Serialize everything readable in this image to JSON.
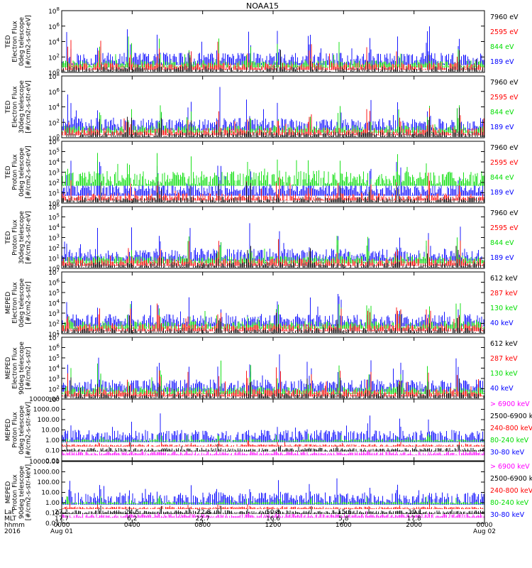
{
  "title": "NOAA15",
  "colors": {
    "black": "#000000",
    "blue": "#0000ff",
    "red": "#ff0000",
    "green": "#00dd00",
    "magenta": "#ff00ff"
  },
  "chart_data": [
    {
      "type": "line",
      "scale": "log",
      "ylabel": [
        "TED",
        "Electron Flux",
        "0deg telescope",
        "[#/cm2-s-str-eV]"
      ],
      "ytick_labels": [
        "10^0",
        "10^2",
        "10^4",
        "10^6",
        "10^8"
      ],
      "ytick_exponents": [
        0,
        2,
        4,
        6,
        8
      ],
      "ylim": [
        1,
        100000000
      ],
      "legend": [
        "7960 eV",
        "2595 eV",
        "844 eV",
        "189 eV"
      ],
      "legend_colors": [
        "#000000",
        "#ff0000",
        "#00dd00",
        "#0000ff"
      ]
    },
    {
      "type": "line",
      "scale": "log",
      "ylabel": [
        "TED",
        "Electron Flux",
        "30deg telescope",
        "[#/cm2-s-str-eV]"
      ],
      "ytick_labels": [
        "10^0",
        "10^2",
        "10^4",
        "10^6",
        "10^8"
      ],
      "ytick_exponents": [
        0,
        2,
        4,
        6,
        8
      ],
      "ylim": [
        1,
        100000000
      ],
      "legend": [
        "7960 eV",
        "2595 eV",
        "844 eV",
        "189 eV"
      ],
      "legend_colors": [
        "#000000",
        "#ff0000",
        "#00dd00",
        "#0000ff"
      ]
    },
    {
      "type": "line",
      "scale": "log",
      "ylabel": [
        "TED",
        "Proton Flux",
        "0deg telescope",
        "[#/cm2-s-str-eV]"
      ],
      "ytick_labels": [
        "10^0",
        "10^1",
        "10^2",
        "10^3",
        "10^4",
        "10^5",
        "10^6"
      ],
      "ytick_exponents": [
        0,
        1,
        2,
        3,
        4,
        5,
        6
      ],
      "ylim": [
        1,
        1000000
      ],
      "legend": [
        "7960 eV",
        "2595 eV",
        "844 eV",
        "189 eV"
      ],
      "legend_colors": [
        "#000000",
        "#ff0000",
        "#00dd00",
        "#0000ff"
      ]
    },
    {
      "type": "line",
      "scale": "log",
      "ylabel": [
        "TED",
        "Proton Flux",
        "30deg telescope",
        "[#/cm2-s-str-eV]"
      ],
      "ytick_labels": [
        "10^0",
        "10^1",
        "10^2",
        "10^3",
        "10^4",
        "10^5",
        "10^6"
      ],
      "ytick_exponents": [
        0,
        1,
        2,
        3,
        4,
        5,
        6
      ],
      "ylim": [
        1,
        1000000
      ],
      "legend": [
        "7960 eV",
        "2595 eV",
        "844 eV",
        "189 eV"
      ],
      "legend_colors": [
        "#000000",
        "#ff0000",
        "#00dd00",
        "#0000ff"
      ]
    },
    {
      "type": "line",
      "scale": "log",
      "ylabel": [
        "MEPED",
        "Electron Flux",
        "0deg telescope",
        "[#/cm2-s-str]"
      ],
      "ytick_labels": [
        "10^1",
        "10^2",
        "10^3",
        "10^4",
        "10^5",
        "10^6",
        "10^7"
      ],
      "ytick_exponents": [
        1,
        2,
        3,
        4,
        5,
        6,
        7
      ],
      "ylim": [
        10,
        10000000
      ],
      "legend": [
        "612 keV",
        "287 keV",
        "130 keV",
        "40 keV"
      ],
      "legend_colors": [
        "#000000",
        "#ff0000",
        "#00dd00",
        "#0000ff"
      ]
    },
    {
      "type": "line",
      "scale": "log",
      "ylabel": [
        "MEPED",
        "Electron Flux",
        "90deg telescope",
        "[#/cm2-s-str]"
      ],
      "ytick_labels": [
        "10^1",
        "10^2",
        "10^3",
        "10^4",
        "10^5",
        "10^6",
        "10^7"
      ],
      "ytick_exponents": [
        1,
        2,
        3,
        4,
        5,
        6,
        7
      ],
      "ylim": [
        10,
        10000000
      ],
      "legend": [
        "612 keV",
        "287 keV",
        "130 keV",
        "40 keV"
      ],
      "legend_colors": [
        "#000000",
        "#ff0000",
        "#00dd00",
        "#0000ff"
      ]
    },
    {
      "type": "line",
      "scale": "log",
      "ylabel": [
        "MEPED",
        "Proton Flux",
        "0deg telescope",
        "[#/cm2-s-str-keV]"
      ],
      "ytick_labels": [
        "0.01",
        "0.10",
        "1.00",
        "10.00",
        "100.00",
        "1000.00",
        "10000.00"
      ],
      "ytick_exponents": [
        -2,
        -1,
        0,
        1,
        2,
        3,
        4
      ],
      "ylim": [
        0.01,
        10000
      ],
      "legend": [
        "> 6900 keV",
        "2500-6900 keV",
        "240-800 keV",
        "80-240 keV",
        "30-80 keV"
      ],
      "legend_colors": [
        "#ff00ff",
        "#000000",
        "#ff0000",
        "#00dd00",
        "#0000ff"
      ]
    },
    {
      "type": "line",
      "scale": "log",
      "ylabel": [
        "MEPED",
        "Proton Flux",
        "90deg telescope",
        "[#/cm2-s-str-keV]"
      ],
      "ytick_labels": [
        "0.01",
        "0.10",
        "1.00",
        "10.00",
        "100.00",
        "1000.00",
        "10000.00"
      ],
      "ytick_exponents": [
        -2,
        -1,
        0,
        1,
        2,
        3,
        4
      ],
      "ylim": [
        0.01,
        10000
      ],
      "legend": [
        "> 6900 keV",
        "2500-6900 keV",
        "240-800 keV",
        "80-240 keV",
        "30-80 keV"
      ],
      "legend_colors": [
        "#ff00ff",
        "#000000",
        "#ff0000",
        "#00dd00",
        "#0000ff"
      ]
    }
  ],
  "xaxis": {
    "xlim_hours": [
      0,
      24
    ],
    "row_labels": [
      "Lat",
      "MLT",
      "hhmm",
      "2016"
    ],
    "ticks": [
      {
        "hour": 0,
        "lat": "27.1",
        "mlt": "17.7",
        "hhmm": "0000",
        "date": "Aug 01"
      },
      {
        "hour": 4,
        "lat": "24.5",
        "mlt": "6.2",
        "hhmm": "0400",
        "date": ""
      },
      {
        "hour": 8,
        "lat": "-72.8",
        "mlt": "22.7",
        "hhmm": "0800",
        "date": ""
      },
      {
        "hour": 12,
        "lat": "50.8",
        "mlt": "16.6",
        "hhmm": "1200",
        "date": ""
      },
      {
        "hour": 16,
        "lat": "-15.6",
        "mlt": "5.8",
        "hhmm": "1600",
        "date": ""
      },
      {
        "hour": 20,
        "lat": "-19.1",
        "mlt": "17.8",
        "hhmm": "2000",
        "date": ""
      },
      {
        "hour": 24,
        "lat": "",
        "mlt": "",
        "hhmm": "0000",
        "date": "Aug 02"
      }
    ]
  }
}
